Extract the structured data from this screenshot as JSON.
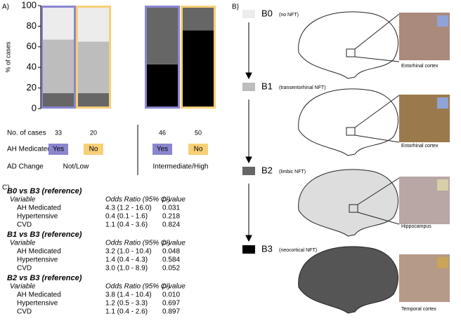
{
  "panel_labels": [
    "A)",
    "B)",
    "C)"
  ],
  "chart_data": {
    "type": "stacked_bar",
    "y_label": "% of cases",
    "categories": [
      null,
      null,
      null,
      null
    ],
    "series": [
      {
        "name": "B3",
        "color": "#000000",
        "values": [
          0,
          0,
          43,
          76
        ]
      },
      {
        "name": "B2",
        "color": "#666666",
        "values": [
          15,
          15,
          57,
          24
        ]
      },
      {
        "name": "B1",
        "color": "#bdbdbd",
        "values": [
          52,
          50,
          0,
          0
        ]
      },
      {
        "name": "B0",
        "color": "#ececec",
        "values": [
          33,
          35,
          0,
          0
        ]
      }
    ],
    "border_colors": [
      "#8a86cf",
      "#f7cf77",
      "#8a86cf",
      "#f7cf77"
    ],
    "ylim": [
      0,
      100
    ],
    "yticks": [
      0,
      20,
      40,
      60,
      80,
      100
    ]
  },
  "case_table": {
    "row_labels": [
      "No. of cases",
      "AH Medicated",
      "AD Change"
    ],
    "cases": [
      33,
      20,
      46,
      50
    ],
    "medicated": [
      "Yes",
      "No",
      "Yes",
      "No"
    ],
    "ad_change": [
      "Not/Low",
      "Intermediate/High"
    ]
  },
  "stages": [
    {
      "description": "(neocortical NFT)",
      "region": "Temporal cortex"
    },
    {
      "description": "(limbic NFT)",
      "region": "Hippocampus"
    },
    {
      "description": "(transentorhinal NFT)",
      "region": "Entorhinal cortex"
    },
    {
      "description": "(no NFT)",
      "region": "Entorhinal cortex"
    }
  ],
  "odds_table": {
    "header": [
      "Variable",
      "Odds Ratio (95% CI)",
      "p-value"
    ],
    "groups": [
      {
        "title": "B0 vs B3 (reference)",
        "rows": [
          [
            "AH Medicated",
            "4.3 (1.2 - 16.0)",
            "0.031"
          ],
          [
            "Hypertensive",
            "0.4 (0.1 - 1.6)",
            "0.218"
          ],
          [
            "CVD",
            "1.1 (0.4 - 3.6)",
            "0.824"
          ]
        ]
      },
      {
        "title": "B1 vs B3 (reference)",
        "rows": [
          [
            "AH Medicated",
            "3.2 (1.0 - 10.4)",
            "0.048"
          ],
          [
            "Hypertensive",
            "1.4 (0.4 - 4.3)",
            "0.584"
          ],
          [
            "CVD",
            "3.0 (1.0 - 8.9)",
            "0.052"
          ]
        ]
      },
      {
        "title": "B2 vs B3 (reference)",
        "rows": [
          [
            "AH Medicated",
            "3.8 (1.4 - 10.4)",
            "0.010"
          ],
          [
            "Hypertensive",
            "1.2 (0.5 - 3.3)",
            "0.697"
          ],
          [
            "CVD",
            "1.1 (0.4 - 2.6)",
            "0.897"
          ]
        ]
      }
    ]
  }
}
